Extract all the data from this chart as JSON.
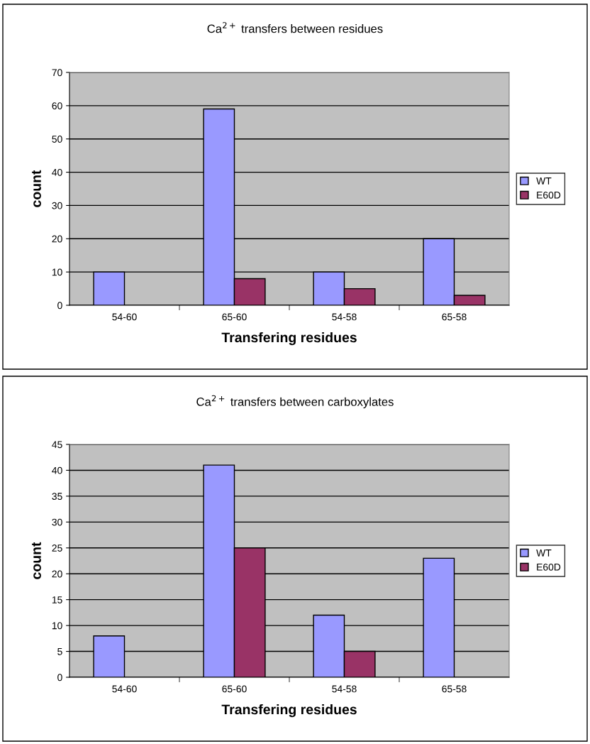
{
  "chart_data": [
    {
      "type": "bar",
      "title": "Ca$^{2+}$ transfers between residues",
      "xlabel": "Transfering residues",
      "ylabel": "count",
      "categories": [
        "54-60",
        "65-60",
        "54-58",
        "65-58"
      ],
      "series": [
        {
          "name": "WT",
          "color": "#9999ff",
          "values": [
            10,
            59,
            10,
            20
          ]
        },
        {
          "name": "E60D",
          "color": "#993366",
          "values": [
            null,
            8,
            5,
            3
          ]
        }
      ],
      "ylim": [
        0,
        70
      ],
      "yticks": [
        0,
        10,
        20,
        30,
        40,
        50,
        60,
        70
      ],
      "grid": "y",
      "legend": "right"
    },
    {
      "type": "bar",
      "title": "Ca$^{2+}$ transfers between carboxylates",
      "xlabel": "Transfering residues",
      "ylabel": "count",
      "categories": [
        "54-60",
        "65-60",
        "54-58",
        "65-58"
      ],
      "series": [
        {
          "name": "WT",
          "color": "#9999ff",
          "values": [
            8,
            41,
            12,
            23
          ]
        },
        {
          "name": "E60D",
          "color": "#993366",
          "values": [
            null,
            25,
            5,
            null
          ]
        }
      ],
      "ylim": [
        0,
        45
      ],
      "yticks": [
        0,
        5,
        10,
        15,
        20,
        25,
        30,
        35,
        40,
        45
      ],
      "grid": "y",
      "legend": "right"
    }
  ]
}
